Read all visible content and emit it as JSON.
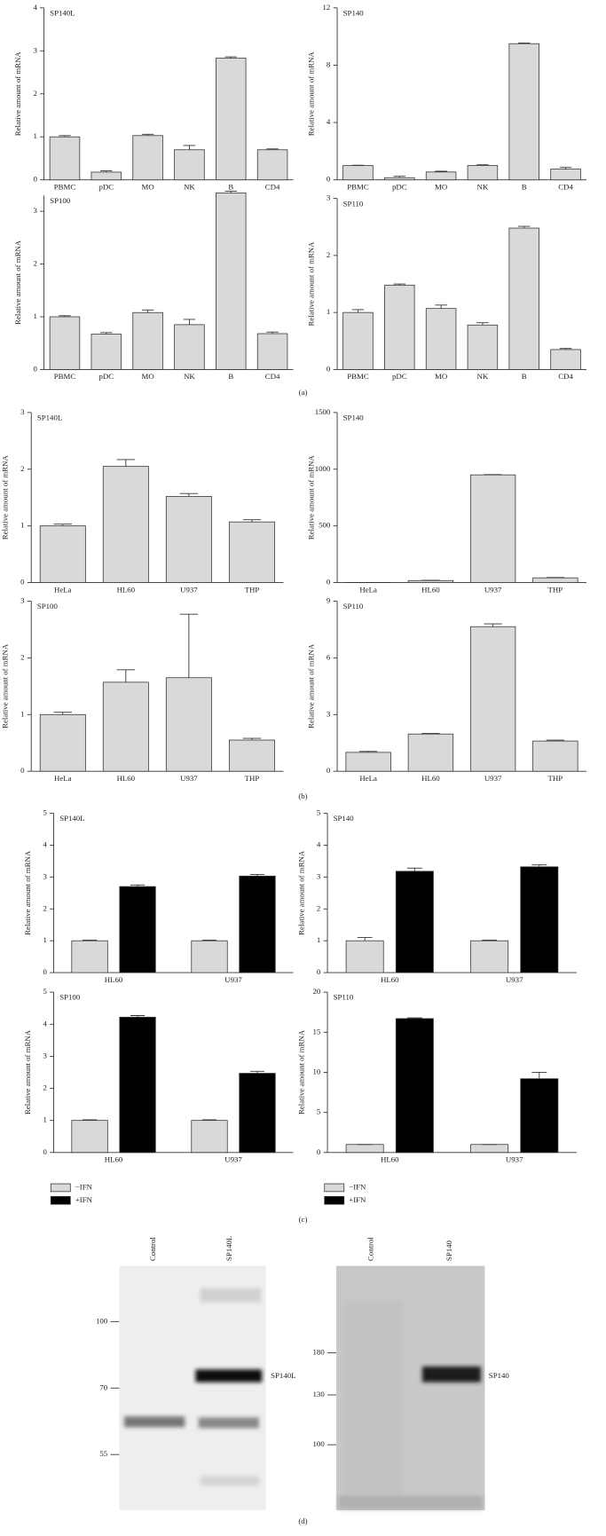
{
  "chart_data": [
    {
      "type": "bar",
      "title": "SP140L",
      "y_label": "Relative amount of mRNA",
      "categories": [
        "PBMC",
        "pDC",
        "MO",
        "NK",
        "B",
        "CD4"
      ],
      "values": [
        1.0,
        0.18,
        1.03,
        0.7,
        2.83,
        0.7
      ],
      "errors": [
        0.03,
        0.03,
        0.03,
        0.1,
        0.03,
        0.02
      ],
      "color": "#d9d9d9",
      "ylim": [
        0,
        4
      ],
      "yticks": [
        0,
        1,
        2,
        3,
        4
      ]
    },
    {
      "type": "bar",
      "title": "SP140",
      "y_label": "Relative amount of mRNA",
      "categories": [
        "PBMC",
        "pDC",
        "MO",
        "NK",
        "B",
        "CD4"
      ],
      "values": [
        1.0,
        0.15,
        0.55,
        1.0,
        9.5,
        0.75
      ],
      "errors": [
        0.02,
        0.1,
        0.05,
        0.05,
        0.05,
        0.12
      ],
      "color": "#d9d9d9",
      "ylim": [
        0,
        12
      ],
      "yticks": [
        0,
        4,
        8,
        12
      ]
    },
    {
      "type": "bar",
      "title": "SP100",
      "y_label": "Relative amount of mRNA",
      "categories": [
        "PBMC",
        "pDC",
        "MO",
        "NK",
        "B",
        "CD4"
      ],
      "values": [
        1.0,
        0.67,
        1.08,
        0.85,
        3.35,
        0.68
      ],
      "errors": [
        0.02,
        0.03,
        0.05,
        0.1,
        0.03,
        0.03
      ],
      "color": "#d9d9d9",
      "ylim": [
        0,
        3.3
      ],
      "yticks": [
        0,
        1,
        2,
        3
      ]
    },
    {
      "type": "bar",
      "title": "SP110",
      "y_label": "Relative amount of mRNA",
      "categories": [
        "PBMC",
        "pDC",
        "MO",
        "NK",
        "B",
        "CD4"
      ],
      "values": [
        1.0,
        1.48,
        1.07,
        0.78,
        2.48,
        0.35
      ],
      "errors": [
        0.05,
        0.02,
        0.06,
        0.04,
        0.03,
        0.02
      ],
      "color": "#d9d9d9",
      "ylim": [
        0,
        3
      ],
      "yticks": [
        0,
        1,
        2,
        3
      ]
    },
    {
      "type": "bar",
      "title": "SP140L",
      "y_label": "Relative amount of mRNA",
      "categories": [
        "HeLa",
        "HL60",
        "U937",
        "THP"
      ],
      "values": [
        1.0,
        2.05,
        1.52,
        1.07
      ],
      "errors": [
        0.03,
        0.12,
        0.05,
        0.04
      ],
      "color": "#d9d9d9",
      "ylim": [
        0,
        3
      ],
      "yticks": [
        0,
        1,
        2,
        3
      ]
    },
    {
      "type": "bar",
      "title": "SP140",
      "y_label": "Relative amount of mRNA",
      "categories": [
        "HeLa",
        "HL60",
        "U937",
        "THP"
      ],
      "values": [
        1,
        18,
        950,
        42
      ],
      "errors": [
        0,
        2,
        3,
        3
      ],
      "color": "#d9d9d9",
      "ylim": [
        0,
        1500
      ],
      "yticks": [
        0,
        500,
        1000,
        1500
      ]
    },
    {
      "type": "bar",
      "title": "SP100",
      "y_label": "Relative amount of mRNA",
      "categories": [
        "HeLa",
        "HL60",
        "U937",
        "THP"
      ],
      "values": [
        1.0,
        1.57,
        1.65,
        0.55
      ],
      "errors": [
        0.04,
        0.22,
        1.12,
        0.03
      ],
      "color": "#d9d9d9",
      "ylim": [
        0,
        3
      ],
      "yticks": [
        0,
        1,
        2,
        3
      ]
    },
    {
      "type": "bar",
      "title": "SP110",
      "y_label": "Relative amount of mRNA",
      "categories": [
        "HeLa",
        "HL60",
        "U937",
        "THP"
      ],
      "values": [
        1.0,
        1.97,
        7.65,
        1.6
      ],
      "errors": [
        0.05,
        0.03,
        0.15,
        0.05
      ],
      "color": "#d9d9d9",
      "ylim": [
        0,
        9
      ],
      "yticks": [
        0,
        3,
        6,
        9
      ]
    },
    {
      "type": "grouped_bar",
      "title": "SP140L",
      "y_label": "Relative amount of mRNA",
      "categories": [
        "HL60",
        "U937"
      ],
      "series": [
        {
          "name": "−IFN",
          "color": "#d9d9d9",
          "values": [
            1.0,
            1.0
          ],
          "errors": [
            0.02,
            0.02
          ]
        },
        {
          "name": "+IFN",
          "color": "#000000",
          "values": [
            2.7,
            3.03
          ],
          "errors": [
            0.05,
            0.05
          ]
        }
      ],
      "ylim": [
        0,
        5
      ],
      "yticks": [
        0,
        1,
        2,
        3,
        4,
        5
      ]
    },
    {
      "type": "grouped_bar",
      "title": "SP140",
      "y_label": "Relative amount of mRNA",
      "categories": [
        "HL60",
        "U937"
      ],
      "series": [
        {
          "name": "−IFN",
          "color": "#d9d9d9",
          "values": [
            1.0,
            1.0
          ],
          "errors": [
            0.1,
            0.02
          ]
        },
        {
          "name": "+IFN",
          "color": "#000000",
          "values": [
            3.18,
            3.32
          ],
          "errors": [
            0.1,
            0.06
          ]
        }
      ],
      "ylim": [
        0,
        5
      ],
      "yticks": [
        0,
        1,
        2,
        3,
        4,
        5
      ]
    },
    {
      "type": "grouped_bar",
      "title": "SP100",
      "y_label": "Relative amount of mRNA",
      "categories": [
        "HL60",
        "U937"
      ],
      "series": [
        {
          "name": "−IFN",
          "color": "#d9d9d9",
          "values": [
            1.0,
            1.0
          ],
          "errors": [
            0.02,
            0.02
          ]
        },
        {
          "name": "+IFN",
          "color": "#000000",
          "values": [
            4.22,
            2.47
          ],
          "errors": [
            0.05,
            0.06
          ]
        }
      ],
      "ylim": [
        0,
        5
      ],
      "yticks": [
        0,
        1,
        2,
        3,
        4,
        5
      ],
      "legend": "below"
    },
    {
      "type": "grouped_bar",
      "title": "SP110",
      "y_label": "Relative amount of mRNA",
      "categories": [
        "HL60",
        "U937"
      ],
      "series": [
        {
          "name": "−IFN",
          "color": "#d9d9d9",
          "values": [
            1,
            1
          ],
          "errors": [
            0,
            0
          ]
        },
        {
          "name": "+IFN",
          "color": "#000000",
          "values": [
            16.7,
            9.2
          ],
          "errors": [
            0.1,
            0.8
          ]
        }
      ],
      "ylim": [
        0,
        20
      ],
      "yticks": [
        0,
        5,
        10,
        15,
        20
      ],
      "legend": "below"
    }
  ],
  "panel_labels": [
    "(a)",
    "(b)",
    "(c)",
    "(d)"
  ],
  "blots": [
    {
      "lanes": [
        "Control",
        "SP140L"
      ],
      "markers": [
        "100",
        "70",
        "55"
      ],
      "band_label": "SP140L"
    },
    {
      "lanes": [
        "Control",
        "SP140"
      ],
      "markers": [
        "180",
        "130",
        "100"
      ],
      "band_label": "SP140"
    }
  ]
}
